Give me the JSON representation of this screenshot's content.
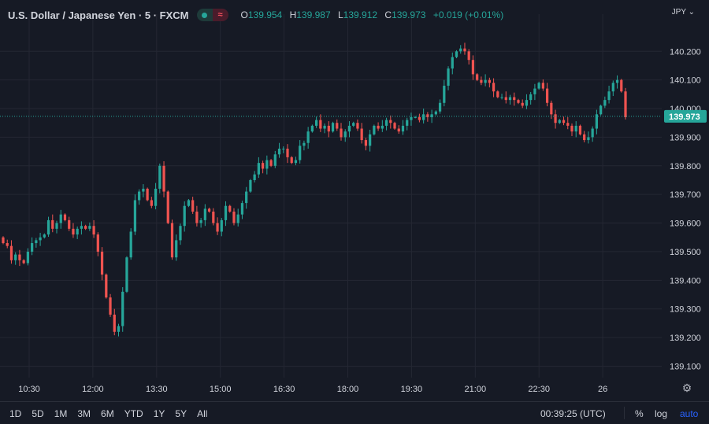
{
  "header": {
    "symbol": "U.S. Dollar / Japanese Yen · 5 · FXCM",
    "ohlc": {
      "o_label": "O",
      "o": "139.954",
      "h_label": "H",
      "h": "139.987",
      "l_label": "L",
      "l": "139.912",
      "c_label": "C",
      "c": "139.973",
      "change": "+0.019 (+0.01%)"
    },
    "currency": "JPY"
  },
  "price_tag": "139.973",
  "bottom_bar": {
    "ranges": [
      "1D",
      "5D",
      "1M",
      "3M",
      "6M",
      "YTD",
      "1Y",
      "5Y",
      "All"
    ],
    "clock": "00:39:25 (UTC)",
    "percent": "%",
    "log": "log",
    "auto": "auto"
  },
  "colors": {
    "up": "#26a69a",
    "down": "#ef5350",
    "bg": "#161a25",
    "grid": "#242733",
    "text": "#d1d4dc",
    "auto": "#2962ff"
  },
  "chart_data": {
    "type": "candlestick",
    "x_ticks": [
      "10:30",
      "12:00",
      "13:30",
      "15:00",
      "16:30",
      "18:00",
      "19:30",
      "21:00",
      "22:30",
      "26"
    ],
    "y_ticks": [
      "140.200",
      "140.100",
      "140.000",
      "139.900",
      "139.800",
      "139.700",
      "139.600",
      "139.500",
      "139.400",
      "139.300",
      "139.200",
      "139.100"
    ],
    "ylim": [
      139.06,
      140.33
    ],
    "last_price": 139.973,
    "interval": "5",
    "closes": [
      139.53,
      139.52,
      139.47,
      139.49,
      139.47,
      139.46,
      139.5,
      139.53,
      139.54,
      139.55,
      139.56,
      139.61,
      139.58,
      139.6,
      139.63,
      139.61,
      139.58,
      139.56,
      139.58,
      139.59,
      139.58,
      139.59,
      139.56,
      139.5,
      139.42,
      139.34,
      139.28,
      139.22,
      139.24,
      139.36,
      139.48,
      139.57,
      139.68,
      139.71,
      139.72,
      139.68,
      139.66,
      139.72,
      139.8,
      139.71,
      139.6,
      139.48,
      139.54,
      139.59,
      139.66,
      139.68,
      139.64,
      139.6,
      139.61,
      139.65,
      139.64,
      139.6,
      139.57,
      139.61,
      139.66,
      139.64,
      139.6,
      139.63,
      139.67,
      139.71,
      139.75,
      139.77,
      139.81,
      139.79,
      139.82,
      139.8,
      139.84,
      139.86,
      139.86,
      139.83,
      139.81,
      139.82,
      139.87,
      139.88,
      139.92,
      139.94,
      139.96,
      139.93,
      139.94,
      139.92,
      139.95,
      139.93,
      139.9,
      139.92,
      139.94,
      139.95,
      139.93,
      139.89,
      139.87,
      139.91,
      139.94,
      139.93,
      139.94,
      139.96,
      139.95,
      139.93,
      139.92,
      139.94,
      139.96,
      139.97,
      139.97,
      139.96,
      139.98,
      139.97,
      139.98,
      139.99,
      140.02,
      140.08,
      140.14,
      140.18,
      140.2,
      140.21,
      140.2,
      140.17,
      140.12,
      140.1,
      140.09,
      140.1,
      140.09,
      140.06,
      140.04,
      140.04,
      140.03,
      140.04,
      140.03,
      140.02,
      140.01,
      140.03,
      140.05,
      140.07,
      140.09,
      140.07,
      140.02,
      139.98,
      139.95,
      139.96,
      139.95,
      139.94,
      139.92,
      139.94,
      139.91,
      139.89,
      139.9,
      139.93,
      139.98,
      140.01,
      140.03,
      140.06,
      140.09,
      140.1,
      140.06,
      139.97
    ]
  }
}
